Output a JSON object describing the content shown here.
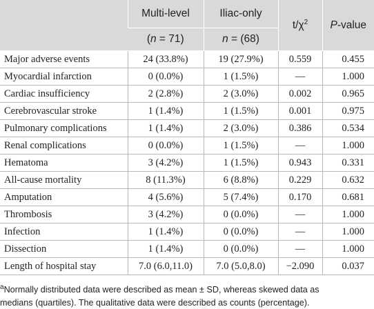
{
  "table": {
    "header": {
      "row1": [
        {
          "parts": [
            ""
          ]
        },
        {
          "parts": [
            "Multi-level"
          ]
        },
        {
          "parts": [
            "Iliac-only"
          ]
        },
        {
          "parts": [
            "t/χ",
            "2"
          ],
          "styles": [
            "",
            "sup"
          ]
        },
        {
          "parts": [
            "P",
            "-value"
          ],
          "styles": [
            "i",
            ""
          ]
        }
      ],
      "row2": [
        {
          "parts": [
            "(",
            "n",
            " = 71)"
          ],
          "styles": [
            "",
            "i",
            ""
          ]
        },
        {
          "parts": [
            "n",
            " = (68)"
          ],
          "styles": [
            "i",
            ""
          ]
        }
      ]
    },
    "rows": [
      [
        "Major adverse events",
        "24 (33.8%)",
        "19 (27.9%)",
        "0.559",
        "0.455"
      ],
      [
        "Myocardial infarction",
        "0 (0.0%)",
        "1 (1.5%)",
        "—",
        "1.000"
      ],
      [
        "Cardiac insufficiency",
        "2 (2.8%)",
        "2 (3.0%)",
        "0.002",
        "0.965"
      ],
      [
        "Cerebrovascular stroke",
        "1 (1.4%)",
        "1 (1.5%)",
        "0.001",
        "0.975"
      ],
      [
        "Pulmonary complications",
        "1 (1.4%)",
        "2 (3.0%)",
        "0.386",
        "0.534"
      ],
      [
        "Renal complications",
        "0 (0.0%)",
        "1 (1.5%)",
        "—",
        "1.000"
      ],
      [
        "Hematoma",
        "3 (4.2%)",
        "1 (1.5%)",
        "0.943",
        "0.331"
      ],
      [
        "All-cause mortality",
        "8 (11.3%)",
        "6 (8.8%)",
        "0.229",
        "0.632"
      ],
      [
        "Amputation",
        "4 (5.6%)",
        "5 (7.4%)",
        "0.170",
        "0.681"
      ],
      [
        "Thrombosis",
        "3 (4.2%)",
        "0 (0.0%)",
        "—",
        "1.000"
      ],
      [
        "Infection",
        "1 (1.4%)",
        "0 (0.0%)",
        "—",
        "1.000"
      ],
      [
        "Dissection",
        "1 (1.4%)",
        "0 (0.0%)",
        "—",
        "1.000"
      ],
      [
        "Length of hospital stay",
        "7.0 (6.0,11.0)",
        "7.0 (5.0,8.0)",
        "−2.090",
        "0.037"
      ]
    ]
  },
  "footnote": {
    "marker": "a",
    "line1": "Normally distributed data were described as mean ± SD, whereas skewed data as",
    "line2": "medians (quartiles). The qualitative data were described as counts (percentage)."
  }
}
